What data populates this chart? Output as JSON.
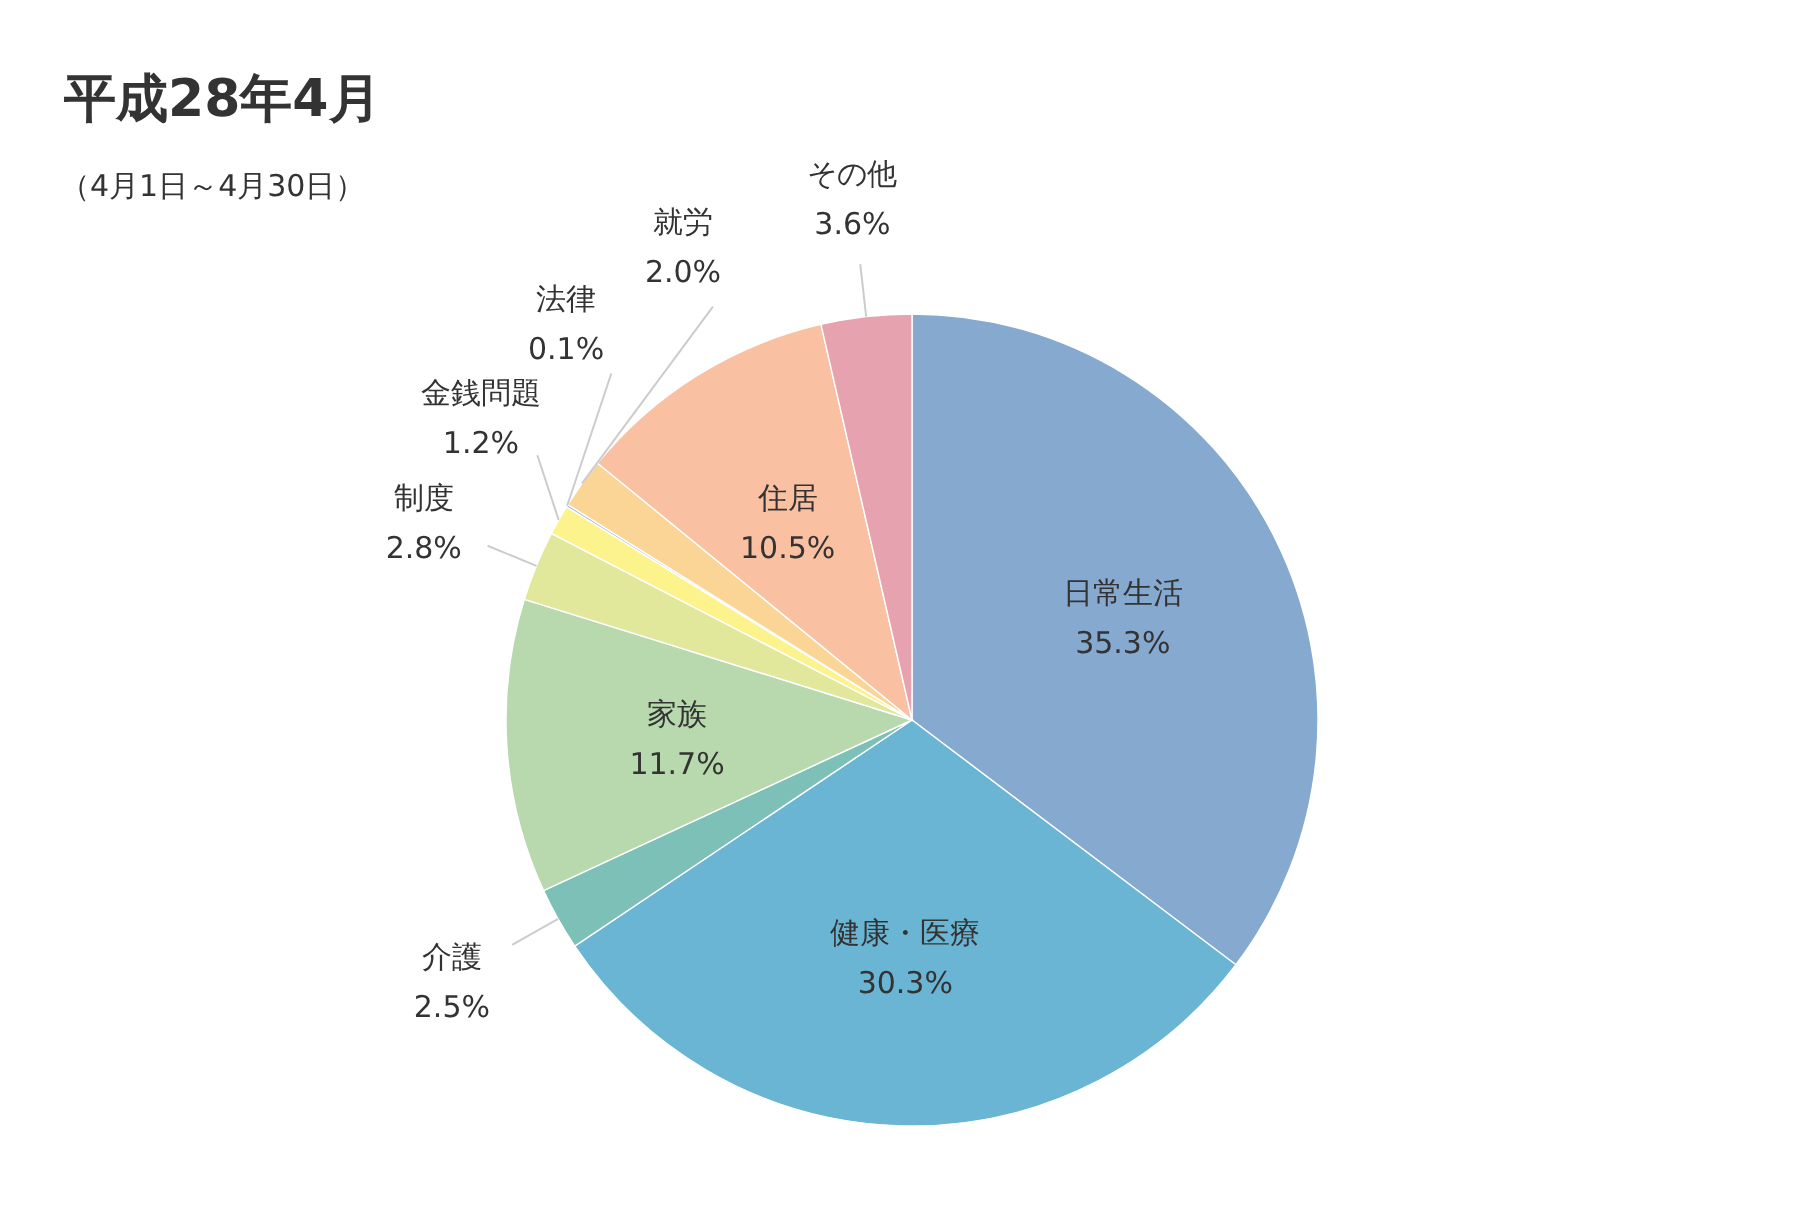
{
  "chart_data": {
    "type": "pie",
    "title": "平成28年4月",
    "subtitle": "（4月1日～4月30日）",
    "categories": [
      "日常生活",
      "健康・医療",
      "介護",
      "家族",
      "制度",
      "金銭問題",
      "法律",
      "就労",
      "住居",
      "その他"
    ],
    "values": [
      35.3,
      30.3,
      2.5,
      11.7,
      2.8,
      1.2,
      0.1,
      2.0,
      10.5,
      3.6
    ],
    "colors": [
      "#86a9d0",
      "#6ab5d3",
      "#7dc0b8",
      "#b8d9ae",
      "#e1e89b",
      "#fdf38c",
      "#a9b6da",
      "#fad595",
      "#f9c0a2",
      "#e6a2af"
    ],
    "value_labels": [
      "35.3%",
      "30.3%",
      "2.5%",
      "11.7%",
      "2.8%",
      "1.2%",
      "0.1%",
      "2.0%",
      "10.5%",
      "3.6%"
    ]
  }
}
